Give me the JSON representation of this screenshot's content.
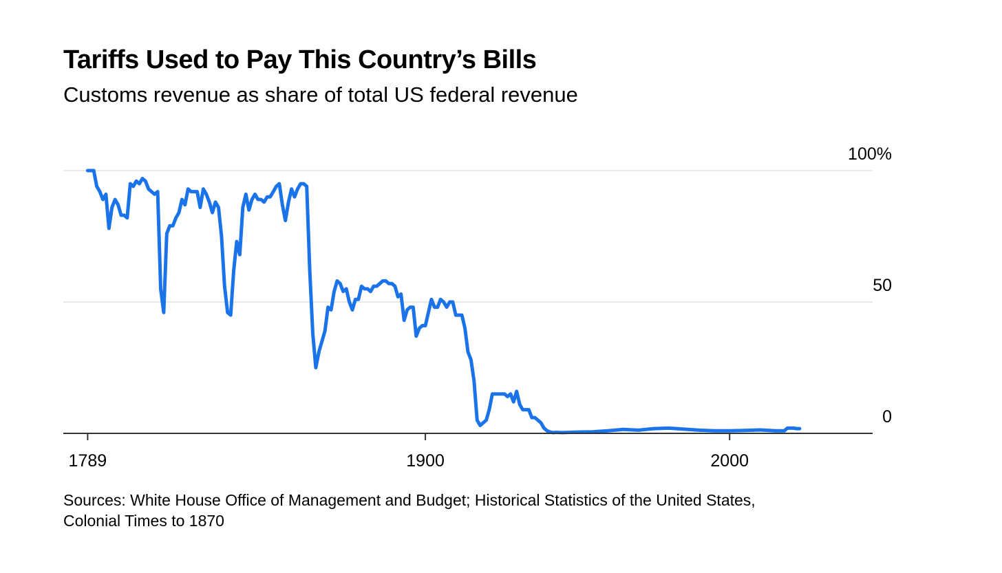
{
  "title": "Tariffs Used to Pay This Country’s Bills",
  "subtitle": "Customs revenue as share of total US federal revenue",
  "source_lines": [
    "Sources: White House Office of Management and Budget; Historical Statistics of the United States,",
    "Colonial Times to 1870"
  ],
  "colors": {
    "line": "#1a73e8",
    "grid": "#e8e8e8",
    "axis": "#333333"
  },
  "chart_data": {
    "type": "line",
    "title": "Tariffs Used to Pay This Country’s Bills",
    "subtitle": "Customs revenue as share of total US federal revenue",
    "xlim": [
      1781,
      2047
    ],
    "ylim": [
      0,
      100
    ],
    "y_unit": "%",
    "y_ticks": [
      {
        "value": 100,
        "label": "100%"
      },
      {
        "value": 50,
        "label": "50"
      },
      {
        "value": 0,
        "label": "0"
      }
    ],
    "x_ticks": [
      {
        "value": 1789,
        "label": "1789"
      },
      {
        "value": 1900,
        "label": "1900"
      },
      {
        "value": 2000,
        "label": "2000"
      }
    ],
    "grid": true,
    "legend": "none",
    "series": [
      {
        "x": [
          1789,
          1791,
          1792,
          1793,
          1794,
          1795,
          1796,
          1797,
          1798,
          1799,
          1800,
          1801,
          1802,
          1803,
          1804,
          1805,
          1806,
          1807,
          1808,
          1809,
          1810,
          1811,
          1812,
          1813,
          1814,
          1815,
          1816,
          1817,
          1818,
          1819,
          1820,
          1821,
          1822,
          1823,
          1824,
          1825,
          1826,
          1827,
          1828,
          1829,
          1830,
          1831,
          1832,
          1833,
          1834,
          1835,
          1836,
          1837,
          1838,
          1839,
          1840,
          1841,
          1842,
          1843,
          1844,
          1845,
          1846,
          1847,
          1848,
          1849,
          1850,
          1851,
          1852,
          1853,
          1854,
          1855,
          1856,
          1857,
          1858,
          1859,
          1860,
          1861,
          1862,
          1863,
          1864,
          1865,
          1866,
          1867,
          1868,
          1869,
          1870,
          1871,
          1872,
          1873,
          1874,
          1875,
          1876,
          1877,
          1878,
          1879,
          1880,
          1881,
          1882,
          1883,
          1884,
          1885,
          1886,
          1887,
          1888,
          1889,
          1890,
          1891,
          1892,
          1893,
          1894,
          1895,
          1896,
          1897,
          1898,
          1899,
          1900,
          1901,
          1902,
          1903,
          1904,
          1905,
          1906,
          1907,
          1908,
          1909,
          1910,
          1911,
          1912,
          1913,
          1914,
          1915,
          1916,
          1917,
          1918,
          1919,
          1920,
          1921,
          1922,
          1923,
          1924,
          1925,
          1926,
          1927,
          1928,
          1929,
          1930,
          1931,
          1932,
          1933,
          1934,
          1935,
          1936,
          1937,
          1938,
          1939,
          1940,
          1941,
          1942,
          1943,
          1945,
          1950,
          1955,
          1960,
          1965,
          1970,
          1975,
          1980,
          1985,
          1990,
          1995,
          2000,
          2005,
          2010,
          2015,
          2018,
          2019,
          2020,
          2021,
          2022,
          2023
        ],
        "values": [
          100,
          100,
          94,
          92,
          89,
          91,
          78,
          86,
          89,
          87,
          83,
          83,
          82,
          95,
          94,
          96,
          95,
          97,
          96,
          93,
          92,
          91,
          92,
          55,
          46,
          76,
          79,
          79,
          82,
          84,
          89,
          87,
          93,
          92,
          92,
          92,
          86,
          93,
          91,
          88,
          84,
          88,
          86,
          75,
          56,
          46,
          45,
          62,
          73,
          68,
          86,
          91,
          85,
          89,
          91,
          89,
          89,
          88,
          90,
          90,
          92,
          94,
          95,
          87,
          81,
          88,
          93,
          90,
          93,
          95,
          95,
          94,
          62,
          38,
          25,
          31,
          35,
          39,
          48,
          47,
          54,
          58,
          57,
          54,
          55,
          50,
          47,
          51,
          51,
          56,
          55,
          55,
          54,
          56,
          56,
          57,
          58,
          58,
          57,
          57,
          56,
          52,
          53,
          43,
          47,
          48,
          48,
          37,
          40,
          41,
          41,
          46,
          51,
          48,
          48,
          51,
          50,
          48,
          50,
          50,
          45,
          45,
          45,
          40,
          31,
          28,
          20,
          5,
          3,
          4,
          5,
          9,
          15,
          15,
          15,
          15,
          15,
          14,
          15,
          12,
          16,
          11,
          9,
          9,
          9,
          6,
          6,
          5,
          4,
          2,
          1,
          0.5,
          0.3,
          0.4,
          0.3,
          0.5,
          0.6,
          1,
          1.5,
          1.2,
          1.8,
          2,
          1.6,
          1.2,
          1,
          1,
          1.1,
          1.3,
          1,
          1,
          2,
          2,
          2,
          1.8,
          1.8
        ]
      }
    ]
  }
}
